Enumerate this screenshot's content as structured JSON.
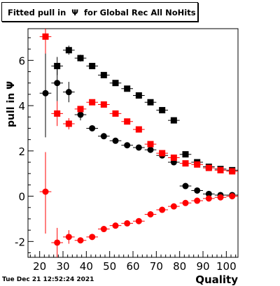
{
  "title": "Fitted pull in  Ψ  for Global Rec All NoHits",
  "timestamp": "Tue Dec 21 12:52:24 2021",
  "chart_data": {
    "type": "scatter",
    "title": "Fitted pull in  Ψ  for Global Rec All NoHits",
    "xlabel": "Quality",
    "ylabel": "pull in  Ψ",
    "xlim": [
      15,
      105
    ],
    "ylim": [
      -2.7,
      7.4
    ],
    "xticks": [
      20,
      30,
      40,
      50,
      60,
      70,
      80,
      90,
      100
    ],
    "yticks": [
      -2,
      0,
      2,
      4,
      6
    ],
    "grid": false,
    "series": [
      {
        "marker": "square",
        "color": "#000000",
        "points": [
          {
            "x": 27.5,
            "y": 5.75,
            "ylo": 5.35,
            "yhi": 6.15
          },
          {
            "x": 32.5,
            "y": 6.45,
            "ylo": 6.25,
            "yhi": 6.65
          },
          {
            "x": 37.5,
            "y": 6.1,
            "ylo": 5.95,
            "yhi": 6.25
          },
          {
            "x": 42.5,
            "y": 5.75
          },
          {
            "x": 47.5,
            "y": 5.35
          },
          {
            "x": 52.5,
            "y": 5.0
          },
          {
            "x": 57.5,
            "y": 4.75
          },
          {
            "x": 62.5,
            "y": 4.45
          },
          {
            "x": 67.5,
            "y": 4.15
          },
          {
            "x": 72.5,
            "y": 3.8
          },
          {
            "x": 77.5,
            "y": 3.35
          },
          {
            "x": 82.5,
            "y": 1.85
          },
          {
            "x": 87.5,
            "y": 1.5
          },
          {
            "x": 92.5,
            "y": 1.3
          },
          {
            "x": 97.5,
            "y": 1.2
          },
          {
            "x": 102.5,
            "y": 1.15
          }
        ]
      },
      {
        "marker": "circle",
        "color": "#000000",
        "points": [
          {
            "x": 22.5,
            "y": 4.55,
            "ylo": 2.6,
            "yhi": 6.5
          },
          {
            "x": 27.5,
            "y": 5.0,
            "ylo": 4.2,
            "yhi": 5.8
          },
          {
            "x": 32.5,
            "y": 4.6,
            "ylo": 4.15,
            "yhi": 5.05
          },
          {
            "x": 37.5,
            "y": 3.6,
            "ylo": 3.35,
            "yhi": 3.85
          },
          {
            "x": 42.5,
            "y": 3.0
          },
          {
            "x": 47.5,
            "y": 2.65
          },
          {
            "x": 52.5,
            "y": 2.45
          },
          {
            "x": 57.5,
            "y": 2.25
          },
          {
            "x": 62.5,
            "y": 2.15
          },
          {
            "x": 67.5,
            "y": 2.05
          },
          {
            "x": 72.5,
            "y": 1.8
          },
          {
            "x": 77.5,
            "y": 1.5
          },
          {
            "x": 82.5,
            "y": 0.45
          },
          {
            "x": 87.5,
            "y": 0.25
          },
          {
            "x": 92.5,
            "y": 0.1
          },
          {
            "x": 97.5,
            "y": 0.05
          },
          {
            "x": 102.5,
            "y": 0.05
          }
        ]
      },
      {
        "marker": "square",
        "color": "#ff0000",
        "points": [
          {
            "x": 22.5,
            "y": 7.05,
            "ylo": 6.3,
            "yhi": 7.4
          },
          {
            "x": 27.5,
            "y": 3.65,
            "ylo": 3.1,
            "yhi": 4.2
          },
          {
            "x": 32.5,
            "y": 3.2,
            "ylo": 2.95,
            "yhi": 3.45
          },
          {
            "x": 37.5,
            "y": 3.85
          },
          {
            "x": 42.5,
            "y": 4.15
          },
          {
            "x": 47.5,
            "y": 4.05
          },
          {
            "x": 52.5,
            "y": 3.65
          },
          {
            "x": 57.5,
            "y": 3.3
          },
          {
            "x": 62.5,
            "y": 2.95
          },
          {
            "x": 67.5,
            "y": 2.3
          },
          {
            "x": 72.5,
            "y": 1.9
          },
          {
            "x": 77.5,
            "y": 1.7
          },
          {
            "x": 82.5,
            "y": 1.45
          },
          {
            "x": 87.5,
            "y": 1.4
          },
          {
            "x": 92.5,
            "y": 1.25
          },
          {
            "x": 97.5,
            "y": 1.15
          },
          {
            "x": 102.5,
            "y": 1.1
          }
        ]
      },
      {
        "marker": "circle",
        "color": "#ff0000",
        "points": [
          {
            "x": 22.5,
            "y": 0.2,
            "ylo": -1.65,
            "yhi": 1.95
          },
          {
            "x": 27.5,
            "y": -2.05,
            "ylo": -2.7,
            "yhi": -1.4
          },
          {
            "x": 32.5,
            "y": -1.8,
            "ylo": -2.1,
            "yhi": -1.5
          },
          {
            "x": 37.5,
            "y": -1.95
          },
          {
            "x": 42.5,
            "y": -1.8
          },
          {
            "x": 47.5,
            "y": -1.45
          },
          {
            "x": 52.5,
            "y": -1.3
          },
          {
            "x": 57.5,
            "y": -1.2
          },
          {
            "x": 62.5,
            "y": -1.1
          },
          {
            "x": 67.5,
            "y": -0.8
          },
          {
            "x": 72.5,
            "y": -0.6
          },
          {
            "x": 77.5,
            "y": -0.45
          },
          {
            "x": 82.5,
            "y": -0.3
          },
          {
            "x": 87.5,
            "y": -0.2
          },
          {
            "x": 92.5,
            "y": -0.1
          },
          {
            "x": 97.5,
            "y": -0.05
          },
          {
            "x": 102.5,
            "y": 0.0
          }
        ]
      }
    ]
  }
}
